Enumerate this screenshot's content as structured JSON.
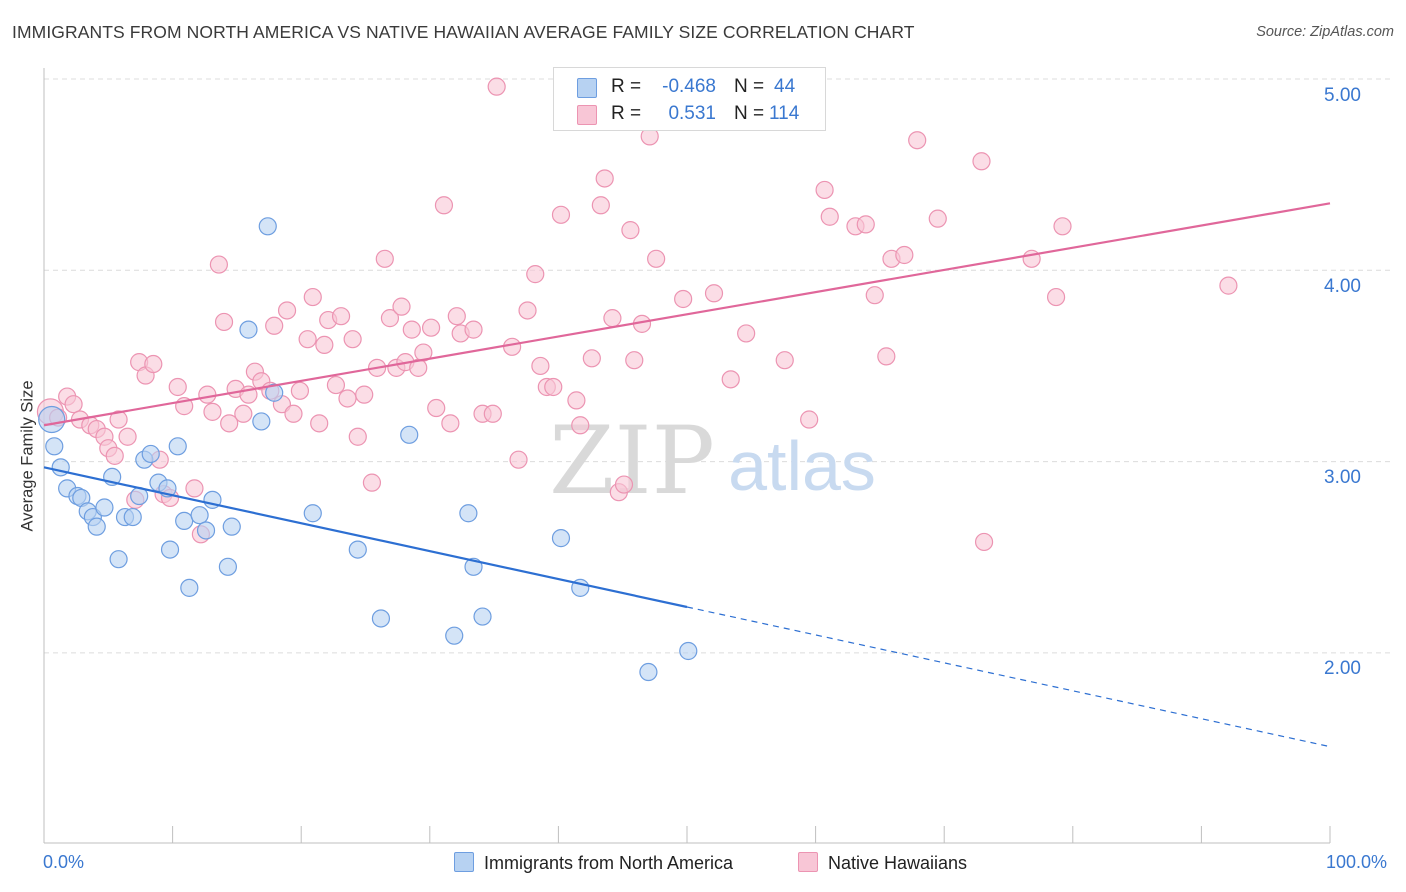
{
  "title": "IMMIGRANTS FROM NORTH AMERICA VS NATIVE HAWAIIAN AVERAGE FAMILY SIZE CORRELATION CHART",
  "source": "Source: ZipAtlas.com",
  "watermark": {
    "zip": "ZIP",
    "atlas": "atlas"
  },
  "colors": {
    "blue_fill": "#b7d2f2",
    "blue_stroke": "#6e9ee0",
    "blue_line": "#2d6fd2",
    "pink_fill": "#f8c6d6",
    "pink_stroke": "#ec94b2",
    "pink_line": "#e0679a",
    "axis_text": "#3a78d0",
    "grid": "#dcdcdc"
  },
  "legend": {
    "rows": [
      {
        "r_label": "R =",
        "r_value": "-0.468",
        "n_label": "N =",
        "n_value": "44"
      },
      {
        "r_label": "R =",
        "r_value": "0.531",
        "n_label": "N =",
        "n_value": "114"
      }
    ]
  },
  "bottom_legend": {
    "blue": "Immigrants from North America",
    "pink": "Native Hawaiians"
  },
  "chart_data": {
    "type": "scatter",
    "title": "IMMIGRANTS FROM NORTH AMERICA VS NATIVE HAWAIIAN AVERAGE FAMILY SIZE CORRELATION CHART",
    "xlabel": "",
    "ylabel": "Average Family Size",
    "xlim": [
      0,
      100
    ],
    "ylim": [
      1.0,
      5.15
    ],
    "x_tick_labels": [
      "0.0%",
      "100.0%"
    ],
    "y_ticks": [
      2.0,
      3.0,
      4.0,
      5.0
    ],
    "y_tick_labels": [
      "2.00",
      "3.00",
      "4.00",
      "5.00"
    ],
    "grid": true,
    "series": [
      {
        "name": "Immigrants from North America",
        "color": "#b7d2f2",
        "trend": {
          "x": [
            0,
            50
          ],
          "y": [
            2.97,
            2.24
          ],
          "dashed_to": {
            "x": 100,
            "y": 1.51
          }
        },
        "points": [
          {
            "x": 0.6,
            "y": 3.22,
            "big": true
          },
          {
            "x": 0.8,
            "y": 3.08
          },
          {
            "x": 1.3,
            "y": 2.97
          },
          {
            "x": 1.8,
            "y": 2.86
          },
          {
            "x": 2.6,
            "y": 2.82
          },
          {
            "x": 2.9,
            "y": 2.81
          },
          {
            "x": 3.4,
            "y": 2.74
          },
          {
            "x": 3.8,
            "y": 2.71
          },
          {
            "x": 4.1,
            "y": 2.66
          },
          {
            "x": 4.7,
            "y": 2.76
          },
          {
            "x": 5.3,
            "y": 2.92
          },
          {
            "x": 5.8,
            "y": 2.49
          },
          {
            "x": 6.3,
            "y": 2.71
          },
          {
            "x": 6.9,
            "y": 2.71
          },
          {
            "x": 7.4,
            "y": 2.82
          },
          {
            "x": 7.8,
            "y": 3.01
          },
          {
            "x": 8.3,
            "y": 3.04
          },
          {
            "x": 8.9,
            "y": 2.89
          },
          {
            "x": 9.6,
            "y": 2.86
          },
          {
            "x": 9.8,
            "y": 2.54
          },
          {
            "x": 10.4,
            "y": 3.08
          },
          {
            "x": 10.9,
            "y": 2.69
          },
          {
            "x": 11.3,
            "y": 2.34
          },
          {
            "x": 12.1,
            "y": 2.72
          },
          {
            "x": 12.6,
            "y": 2.64
          },
          {
            "x": 13.1,
            "y": 2.8
          },
          {
            "x": 14.3,
            "y": 2.45
          },
          {
            "x": 14.6,
            "y": 2.66
          },
          {
            "x": 15.9,
            "y": 3.69
          },
          {
            "x": 16.9,
            "y": 3.21
          },
          {
            "x": 17.4,
            "y": 4.23
          },
          {
            "x": 17.9,
            "y": 3.36
          },
          {
            "x": 20.9,
            "y": 2.73
          },
          {
            "x": 24.4,
            "y": 2.54
          },
          {
            "x": 26.2,
            "y": 2.18
          },
          {
            "x": 28.4,
            "y": 3.14
          },
          {
            "x": 31.9,
            "y": 2.09
          },
          {
            "x": 33.0,
            "y": 2.73
          },
          {
            "x": 33.4,
            "y": 2.45
          },
          {
            "x": 34.1,
            "y": 2.19
          },
          {
            "x": 40.2,
            "y": 2.6
          },
          {
            "x": 41.7,
            "y": 2.34
          },
          {
            "x": 47.0,
            "y": 1.9
          },
          {
            "x": 50.1,
            "y": 2.01
          }
        ]
      },
      {
        "name": "Native Hawaiians",
        "color": "#f8c6d6",
        "trend": {
          "x": [
            0,
            100
          ],
          "y": [
            3.19,
            4.35
          ]
        },
        "points": [
          {
            "x": 0.5,
            "y": 3.26,
            "big": true
          },
          {
            "x": 1.1,
            "y": 3.23
          },
          {
            "x": 1.8,
            "y": 3.34
          },
          {
            "x": 2.3,
            "y": 3.3
          },
          {
            "x": 2.8,
            "y": 3.22
          },
          {
            "x": 3.6,
            "y": 3.19
          },
          {
            "x": 4.1,
            "y": 3.17
          },
          {
            "x": 4.7,
            "y": 3.13
          },
          {
            "x": 5.0,
            "y": 3.07
          },
          {
            "x": 5.5,
            "y": 3.03
          },
          {
            "x": 5.8,
            "y": 3.22
          },
          {
            "x": 6.5,
            "y": 3.13
          },
          {
            "x": 7.1,
            "y": 2.8
          },
          {
            "x": 7.4,
            "y": 3.52
          },
          {
            "x": 7.9,
            "y": 3.45
          },
          {
            "x": 8.5,
            "y": 3.51
          },
          {
            "x": 9.0,
            "y": 3.01
          },
          {
            "x": 9.3,
            "y": 2.83
          },
          {
            "x": 9.8,
            "y": 2.81
          },
          {
            "x": 10.4,
            "y": 3.39
          },
          {
            "x": 10.9,
            "y": 3.29
          },
          {
            "x": 11.7,
            "y": 2.86
          },
          {
            "x": 12.2,
            "y": 2.62
          },
          {
            "x": 12.7,
            "y": 3.35
          },
          {
            "x": 13.1,
            "y": 3.26
          },
          {
            "x": 13.6,
            "y": 4.03
          },
          {
            "x": 14.0,
            "y": 3.73
          },
          {
            "x": 14.4,
            "y": 3.2
          },
          {
            "x": 14.9,
            "y": 3.38
          },
          {
            "x": 15.5,
            "y": 3.25
          },
          {
            "x": 15.9,
            "y": 3.35
          },
          {
            "x": 16.4,
            "y": 3.47
          },
          {
            "x": 16.9,
            "y": 3.42
          },
          {
            "x": 17.6,
            "y": 3.37
          },
          {
            "x": 17.9,
            "y": 3.71
          },
          {
            "x": 18.5,
            "y": 3.3
          },
          {
            "x": 18.9,
            "y": 3.79
          },
          {
            "x": 19.4,
            "y": 3.25
          },
          {
            "x": 19.9,
            "y": 3.37
          },
          {
            "x": 20.5,
            "y": 3.64
          },
          {
            "x": 20.9,
            "y": 3.86
          },
          {
            "x": 21.4,
            "y": 3.2
          },
          {
            "x": 21.8,
            "y": 3.61
          },
          {
            "x": 22.1,
            "y": 3.74
          },
          {
            "x": 22.7,
            "y": 3.4
          },
          {
            "x": 23.1,
            "y": 3.76
          },
          {
            "x": 23.6,
            "y": 3.33
          },
          {
            "x": 24.0,
            "y": 3.64
          },
          {
            "x": 24.4,
            "y": 3.13
          },
          {
            "x": 24.9,
            "y": 3.35
          },
          {
            "x": 25.5,
            "y": 2.89
          },
          {
            "x": 25.9,
            "y": 3.49
          },
          {
            "x": 26.5,
            "y": 4.06
          },
          {
            "x": 26.9,
            "y": 3.75
          },
          {
            "x": 27.4,
            "y": 3.49
          },
          {
            "x": 27.8,
            "y": 3.81
          },
          {
            "x": 28.1,
            "y": 3.52
          },
          {
            "x": 28.6,
            "y": 3.69
          },
          {
            "x": 29.1,
            "y": 3.49
          },
          {
            "x": 29.5,
            "y": 3.57
          },
          {
            "x": 30.1,
            "y": 3.7
          },
          {
            "x": 30.5,
            "y": 3.28
          },
          {
            "x": 31.1,
            "y": 4.34
          },
          {
            "x": 31.6,
            "y": 3.2
          },
          {
            "x": 32.1,
            "y": 3.76
          },
          {
            "x": 32.4,
            "y": 3.67
          },
          {
            "x": 33.4,
            "y": 3.69
          },
          {
            "x": 34.1,
            "y": 3.25
          },
          {
            "x": 34.9,
            "y": 3.25
          },
          {
            "x": 35.2,
            "y": 4.96
          },
          {
            "x": 36.4,
            "y": 3.6
          },
          {
            "x": 36.9,
            "y": 3.01
          },
          {
            "x": 37.6,
            "y": 3.79
          },
          {
            "x": 38.2,
            "y": 3.98
          },
          {
            "x": 38.6,
            "y": 3.5
          },
          {
            "x": 39.1,
            "y": 3.39
          },
          {
            "x": 39.6,
            "y": 3.39
          },
          {
            "x": 40.2,
            "y": 4.29
          },
          {
            "x": 41.4,
            "y": 3.32
          },
          {
            "x": 41.7,
            "y": 3.19
          },
          {
            "x": 42.6,
            "y": 3.54
          },
          {
            "x": 43.3,
            "y": 4.34
          },
          {
            "x": 43.6,
            "y": 4.48
          },
          {
            "x": 44.2,
            "y": 3.75
          },
          {
            "x": 44.7,
            "y": 2.84
          },
          {
            "x": 45.1,
            "y": 2.88
          },
          {
            "x": 45.6,
            "y": 4.21
          },
          {
            "x": 45.9,
            "y": 3.53
          },
          {
            "x": 46.5,
            "y": 3.72
          },
          {
            "x": 47.1,
            "y": 4.7
          },
          {
            "x": 47.6,
            "y": 4.06
          },
          {
            "x": 49.7,
            "y": 3.85
          },
          {
            "x": 52.1,
            "y": 3.88
          },
          {
            "x": 53.4,
            "y": 3.43
          },
          {
            "x": 54.6,
            "y": 3.67
          },
          {
            "x": 57.6,
            "y": 3.53
          },
          {
            "x": 59.5,
            "y": 3.22
          },
          {
            "x": 60.7,
            "y": 4.42
          },
          {
            "x": 61.1,
            "y": 4.28
          },
          {
            "x": 63.1,
            "y": 4.23
          },
          {
            "x": 63.9,
            "y": 4.24
          },
          {
            "x": 64.6,
            "y": 3.87
          },
          {
            "x": 65.5,
            "y": 3.55
          },
          {
            "x": 65.9,
            "y": 4.06
          },
          {
            "x": 66.9,
            "y": 4.08
          },
          {
            "x": 67.9,
            "y": 4.68
          },
          {
            "x": 69.5,
            "y": 4.27
          },
          {
            "x": 72.9,
            "y": 4.57
          },
          {
            "x": 73.1,
            "y": 2.58
          },
          {
            "x": 76.8,
            "y": 4.06
          },
          {
            "x": 78.7,
            "y": 3.86
          },
          {
            "x": 79.2,
            "y": 4.23
          },
          {
            "x": 92.1,
            "y": 3.92
          }
        ]
      }
    ]
  }
}
